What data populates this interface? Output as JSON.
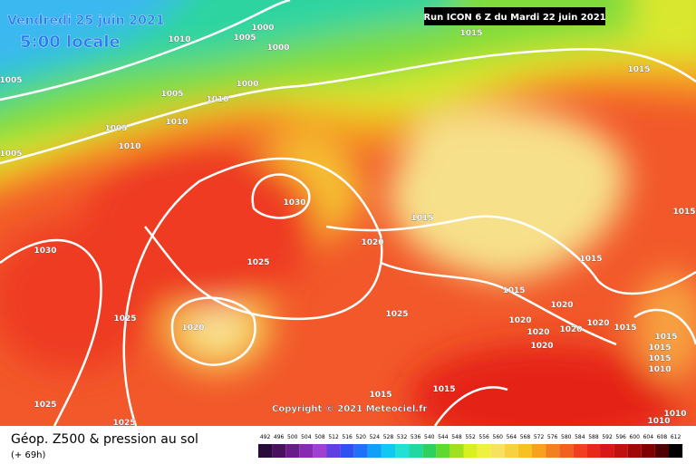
{
  "header": {
    "date": "Vendredi 25 juin 2021",
    "time": "5:00 locale",
    "run": "Run ICON 6 Z du Mardi 22 juin 2021"
  },
  "copyright": "Copyright © 2021 Meteociel.fr",
  "footer": {
    "title": "Géop. Z500 & pression au sol",
    "lead": "(+ 69h)"
  },
  "legend": {
    "values": [
      492,
      496,
      500,
      504,
      508,
      512,
      516,
      520,
      524,
      528,
      532,
      536,
      540,
      544,
      548,
      552,
      556,
      560,
      564,
      568,
      572,
      576,
      580,
      584,
      588,
      592,
      596,
      600,
      604,
      608,
      612
    ]
  },
  "isobar_labels": [
    "1010",
    "1005",
    "1000",
    "1000",
    "1015",
    "1005",
    "1015",
    "1005",
    "1010",
    "1000",
    "1010",
    "1005",
    "1010",
    "1005",
    "1030",
    "1015",
    "1015",
    "1020",
    "1030",
    "1025",
    "1015",
    "1015",
    "1020",
    "1025",
    "1025",
    "1020",
    "1020",
    "1020",
    "1020",
    "1015",
    "1020",
    "1015",
    "1020",
    "1015",
    "1015",
    "1010",
    "1015",
    "1015",
    "1025",
    "1025",
    "1010",
    "1010"
  ]
}
